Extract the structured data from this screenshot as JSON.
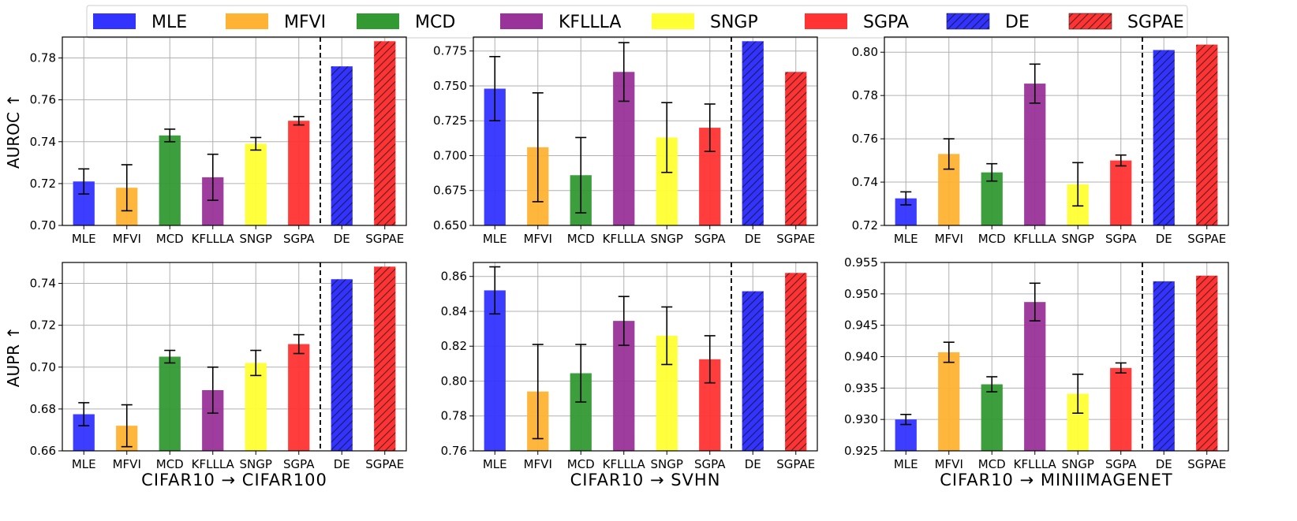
{
  "legend": {
    "entries": [
      {
        "label": "MLE",
        "color": "#3333ff",
        "hatch": false
      },
      {
        "label": "MFVI",
        "color": "#ffb233",
        "hatch": false
      },
      {
        "label": "MCD",
        "color": "#339933",
        "hatch": false
      },
      {
        "label": "KFLLLA",
        "color": "#993399",
        "hatch": false
      },
      {
        "label": "SNGP",
        "color": "#ffff33",
        "hatch": false
      },
      {
        "label": "SGPA",
        "color": "#ff3333",
        "hatch": false
      },
      {
        "label": "DE",
        "color": "#3333ff",
        "hatch": true
      },
      {
        "label": "SGPAE",
        "color": "#ff3333",
        "hatch": true
      }
    ]
  },
  "chart_data": [
    {
      "type": "bar",
      "row": 0,
      "col": 0,
      "ylabel": "AUROC ↑",
      "xlabel": "",
      "categories": [
        "MLE",
        "MFVI",
        "MCD",
        "KFLLLA",
        "SNGP",
        "SGPA",
        "DE",
        "SGPAE"
      ],
      "values": [
        0.721,
        0.718,
        0.743,
        0.723,
        0.739,
        0.75,
        0.776,
        0.788
      ],
      "errors": [
        0.006,
        0.011,
        0.003,
        0.011,
        0.003,
        0.002,
        null,
        null
      ],
      "ylim": [
        0.7,
        0.79
      ],
      "yticks": [
        0.7,
        0.72,
        0.74,
        0.76,
        0.78
      ],
      "ytick_labels": [
        "0.70",
        "0.72",
        "0.74",
        "0.76",
        "0.78"
      ],
      "separator_after": 6
    },
    {
      "type": "bar",
      "row": 0,
      "col": 1,
      "ylabel": "",
      "xlabel": "",
      "categories": [
        "MLE",
        "MFVI",
        "MCD",
        "KFLLLA",
        "SNGP",
        "SGPA",
        "DE",
        "SGPAE"
      ],
      "values": [
        0.748,
        0.706,
        0.686,
        0.76,
        0.713,
        0.72,
        0.782,
        0.76
      ],
      "errors": [
        0.023,
        0.039,
        0.027,
        0.021,
        0.025,
        0.017,
        null,
        null
      ],
      "ylim": [
        0.65,
        0.785
      ],
      "yticks": [
        0.65,
        0.675,
        0.7,
        0.725,
        0.75,
        0.775
      ],
      "ytick_labels": [
        "0.650",
        "0.675",
        "0.700",
        "0.725",
        "0.750",
        "0.775"
      ],
      "separator_after": 6
    },
    {
      "type": "bar",
      "row": 0,
      "col": 2,
      "ylabel": "",
      "xlabel": "",
      "categories": [
        "MLE",
        "MFVI",
        "MCD",
        "KFLLLA",
        "SNGP",
        "SGPA",
        "DE",
        "SGPAE"
      ],
      "values": [
        0.7325,
        0.753,
        0.7445,
        0.7855,
        0.739,
        0.75,
        0.801,
        0.8035
      ],
      "errors": [
        0.003,
        0.007,
        0.004,
        0.009,
        0.01,
        0.0025,
        null,
        null
      ],
      "ylim": [
        0.72,
        0.807
      ],
      "yticks": [
        0.72,
        0.74,
        0.76,
        0.78,
        0.8
      ],
      "ytick_labels": [
        "0.72",
        "0.74",
        "0.76",
        "0.78",
        "0.80"
      ],
      "separator_after": 6
    },
    {
      "type": "bar",
      "row": 1,
      "col": 0,
      "ylabel": "AUPR ↑",
      "xlabel": "CIFAR10 → CIFAR100",
      "categories": [
        "MLE",
        "MFVI",
        "MCD",
        "KFLLLA",
        "SNGP",
        "SGPA",
        "DE",
        "SGPAE"
      ],
      "values": [
        0.6775,
        0.672,
        0.705,
        0.689,
        0.702,
        0.711,
        0.742,
        0.748
      ],
      "errors": [
        0.0055,
        0.01,
        0.003,
        0.011,
        0.006,
        0.0045,
        null,
        null
      ],
      "ylim": [
        0.66,
        0.75
      ],
      "yticks": [
        0.66,
        0.68,
        0.7,
        0.72,
        0.74
      ],
      "ytick_labels": [
        "0.66",
        "0.68",
        "0.70",
        "0.72",
        "0.74"
      ],
      "separator_after": 6
    },
    {
      "type": "bar",
      "row": 1,
      "col": 1,
      "ylabel": "",
      "xlabel": "CIFAR10 → SVHN",
      "categories": [
        "MLE",
        "MFVI",
        "MCD",
        "KFLLLA",
        "SNGP",
        "SGPA",
        "DE",
        "SGPAE"
      ],
      "values": [
        0.852,
        0.794,
        0.8045,
        0.8345,
        0.826,
        0.8125,
        0.8515,
        0.862
      ],
      "errors": [
        0.0135,
        0.027,
        0.0165,
        0.014,
        0.0165,
        0.0135,
        null,
        null
      ],
      "ylim": [
        0.76,
        0.868
      ],
      "yticks": [
        0.76,
        0.78,
        0.8,
        0.82,
        0.84,
        0.86
      ],
      "ytick_labels": [
        "0.76",
        "0.78",
        "0.80",
        "0.82",
        "0.84",
        "0.86"
      ],
      "separator_after": 6
    },
    {
      "type": "bar",
      "row": 1,
      "col": 2,
      "ylabel": "",
      "xlabel": "CIFAR10 → MINIIMAGENET",
      "categories": [
        "MLE",
        "MFVI",
        "MCD",
        "KFLLLA",
        "SNGP",
        "SGPA",
        "DE",
        "SGPAE"
      ],
      "values": [
        0.93,
        0.9407,
        0.9356,
        0.9487,
        0.9341,
        0.9382,
        0.952,
        0.9529
      ],
      "errors": [
        0.0008,
        0.0016,
        0.0012,
        0.003,
        0.0031,
        0.0008,
        null,
        null
      ],
      "ylim": [
        0.925,
        0.955
      ],
      "yticks": [
        0.925,
        0.93,
        0.935,
        0.94,
        0.945,
        0.95,
        0.955
      ],
      "ytick_labels": [
        "0.925",
        "0.930",
        "0.935",
        "0.940",
        "0.945",
        "0.950",
        "0.955"
      ],
      "separator_after": 6
    }
  ]
}
